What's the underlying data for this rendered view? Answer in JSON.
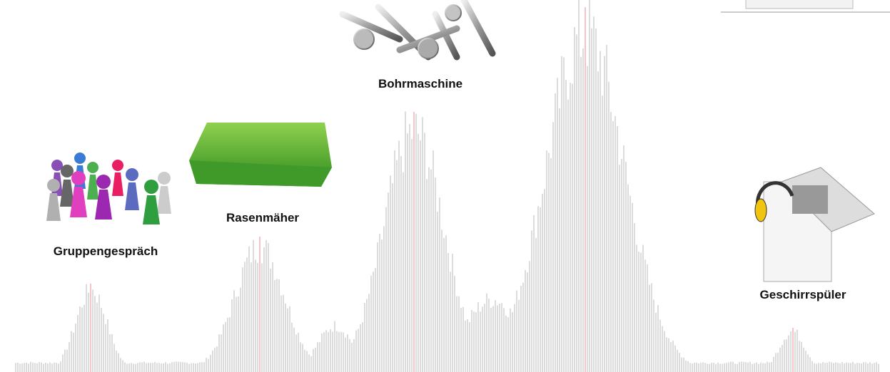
{
  "items": [
    {
      "label": "Gruppengespräch"
    },
    {
      "label": "Rasenmäher"
    },
    {
      "label": "Bohrmaschine"
    },
    {
      "label": "Geschirrspüler"
    }
  ]
}
